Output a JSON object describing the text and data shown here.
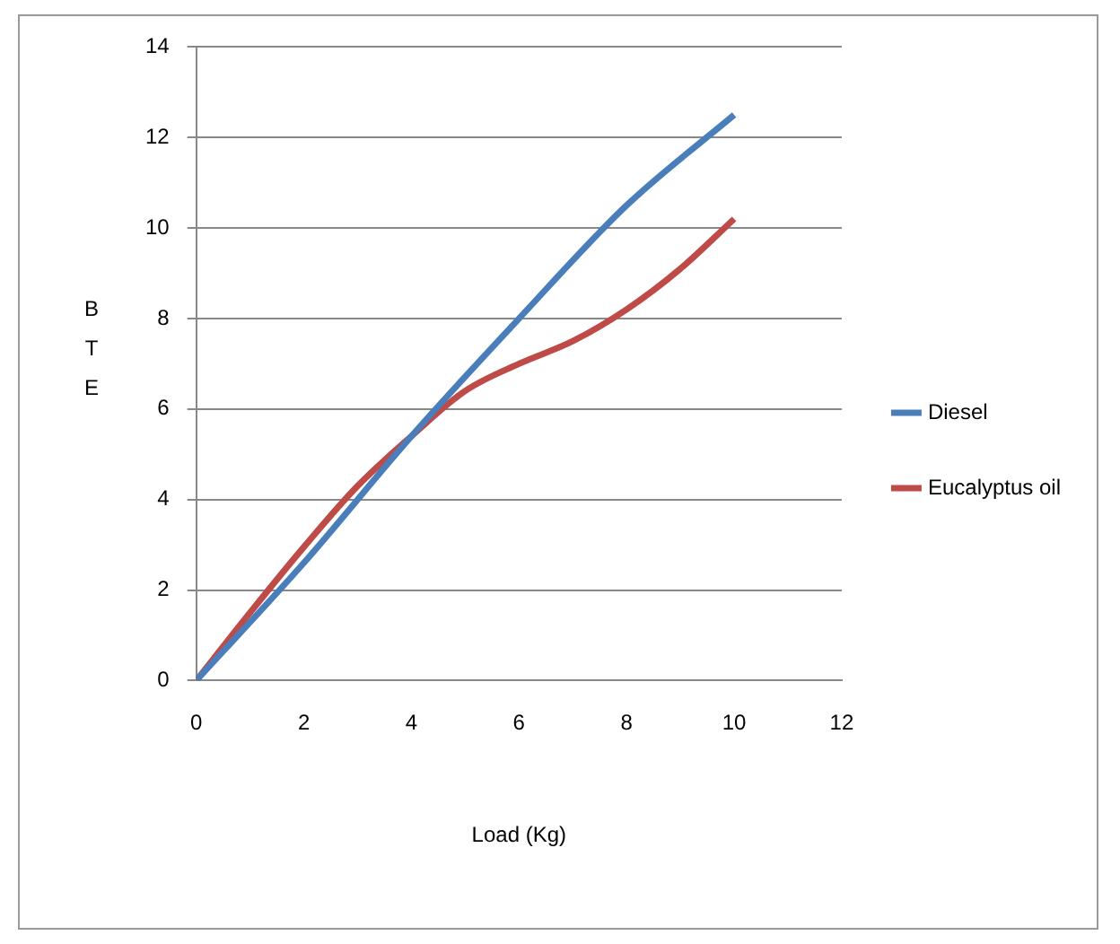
{
  "chart_data": {
    "type": "line",
    "xlabel": "Load (Kg)",
    "ylabel": "BTE",
    "xlim": [
      0,
      12
    ],
    "xticks": [
      0,
      2,
      4,
      6,
      8,
      10,
      12
    ],
    "ylim": [
      0,
      14
    ],
    "yticks": [
      0,
      2,
      4,
      6,
      8,
      10,
      12,
      14
    ],
    "grid": "y",
    "legend": "right",
    "marker": "none",
    "line_style": "solid",
    "series": [
      {
        "name": "Diesel",
        "color": "#4a7ebb",
        "x": [
          0,
          2,
          4,
          6,
          8,
          10
        ],
        "values": [
          0,
          2.6,
          5.4,
          8,
          10.5,
          12.5
        ]
      },
      {
        "name": "Eucalyptus oil",
        "color": "#be4b48",
        "x": [
          0,
          1,
          2,
          3,
          4,
          5,
          6,
          7,
          8,
          9,
          10
        ],
        "values": [
          0,
          1.5,
          2.95,
          4.3,
          5.4,
          6.4,
          7,
          7.5,
          8.2,
          9.1,
          10.2
        ]
      }
    ]
  }
}
